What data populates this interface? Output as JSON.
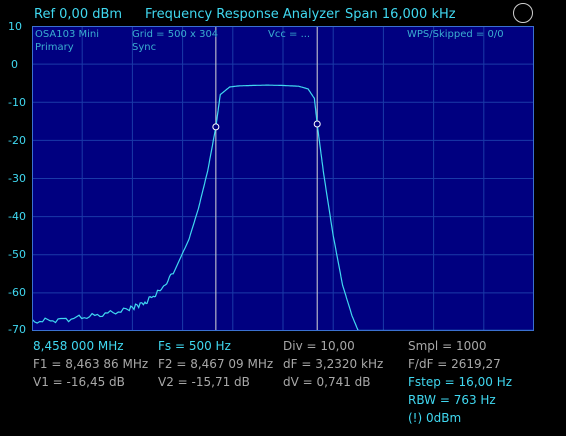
{
  "header": {
    "ref": "Ref  0,00 dBm",
    "title": "Frequency Response Analyzer",
    "span": "Span 16,000 kHz"
  },
  "icons": {
    "settings": "circle-icon"
  },
  "plot": {
    "device": "OSA103 Mini",
    "mode": "Primary",
    "grid": "Grid = 500 x 304",
    "sync": "Sync",
    "vcc": "Vcc = ...",
    "wps": "WPS/Skipped  = 0/0"
  },
  "yaxis": {
    "labels": [
      "10",
      "0",
      "-10",
      "-20",
      "-30",
      "-40",
      "-50",
      "-60",
      "-70"
    ]
  },
  "colors": {
    "trace": "#40d8f0",
    "grid": "#1a3aa8",
    "background": "#000080"
  },
  "chart_data": {
    "type": "line",
    "xlim": [
      8458.0,
      8474.0
    ],
    "ylim": [
      -70,
      10
    ],
    "grid": true,
    "markers": [
      {
        "x": 8463.86,
        "y": -16.45
      },
      {
        "x": 8467.09,
        "y": -15.71
      }
    ],
    "series": [
      {
        "x": [
          8458.0,
          8459.0,
          8460.0,
          8461.0,
          8461.6,
          8462.0,
          8462.5,
          8463.0,
          8463.3,
          8463.6,
          8463.86,
          8464.0,
          8464.3,
          8464.6,
          8465.0,
          8465.5,
          8466.0,
          8466.5,
          8466.8,
          8467.0,
          8467.09,
          8467.3,
          8467.6,
          8467.9,
          8468.2,
          8468.4,
          8468.6,
          8468.8,
          8469.0,
          8470.0,
          8471.0,
          8472.0,
          8473.0,
          8474.0
        ],
        "y": [
          -67.5,
          -67.0,
          -66.0,
          -64.5,
          -62.5,
          -60.0,
          -55.0,
          -46.0,
          -38.0,
          -28.0,
          -16.45,
          -8.0,
          -6.0,
          -5.7,
          -5.6,
          -5.5,
          -5.6,
          -5.8,
          -6.5,
          -9.0,
          -15.71,
          -29.0,
          -45.0,
          -58.0,
          -66.0,
          -70.0,
          -70.0,
          -70.0,
          -70.0,
          -70.0,
          -70.0,
          -70.0,
          -70.0,
          -70.0
        ]
      }
    ]
  },
  "readouts": {
    "start_freq": "8,458 000 MHz",
    "f1": "F1 = 8,463 86 MHz",
    "v1": "V1 = -16,45 dB",
    "fs": "Fs = 500 Hz",
    "f2": "F2 = 8,467 09 MHz",
    "v2": "V2 = -15,71 dB",
    "div": "Div = 10,00",
    "df": "dF = 3,2320 kHz",
    "dv": "dV = 0,741 dB",
    "smpl": "Smpl = 1000",
    "fdf": "F/dF = 2619,27",
    "fstep": "Fstep = 16,00 Hz",
    "rbw": "RBW = 763 Hz",
    "level": "(!) 0dBm"
  }
}
